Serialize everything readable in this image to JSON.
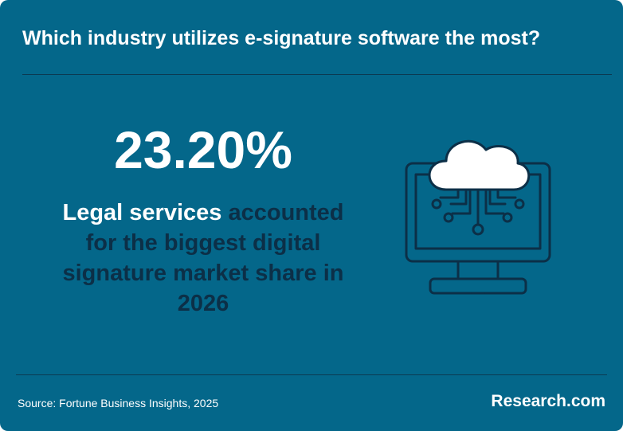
{
  "header": {
    "title": "Which industry utilizes e-signature software the most?"
  },
  "stat": {
    "value": "23.20%",
    "highlight": "Legal services",
    "text": "accounted for the biggest digital signature market share in 2026"
  },
  "footer": {
    "source": "Source: Fortune Business Insights, 2025",
    "brand": "Research.com"
  }
}
